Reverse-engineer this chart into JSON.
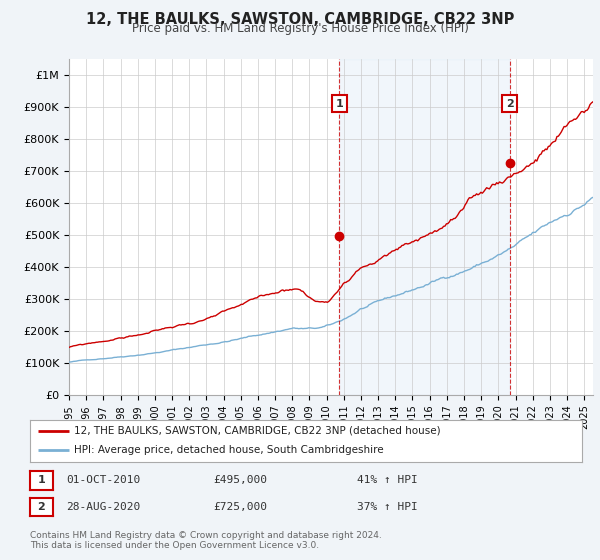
{
  "title": "12, THE BAULKS, SAWSTON, CAMBRIDGE, CB22 3NP",
  "subtitle": "Price paid vs. HM Land Registry's House Price Index (HPI)",
  "background_color": "#f0f4f8",
  "plot_bg_color": "#ffffff",
  "red_line_color": "#cc0000",
  "blue_line_color": "#7ab0d4",
  "shaded_color": "#c8dff0",
  "marker1_date_x": 2010.75,
  "marker1_price": 495000,
  "marker1_label": "1",
  "marker2_date_x": 2020.65,
  "marker2_price": 725000,
  "marker2_label": "2",
  "ylim": [
    0,
    1050000
  ],
  "xlim_start": 1995,
  "xlim_end": 2025.5,
  "ytick_vals": [
    0,
    100000,
    200000,
    300000,
    400000,
    500000,
    600000,
    700000,
    800000,
    900000,
    1000000
  ],
  "ytick_labels": [
    "£0",
    "£100K",
    "£200K",
    "£300K",
    "£400K",
    "£500K",
    "£600K",
    "£700K",
    "£800K",
    "£900K",
    "£1M"
  ],
  "legend_line1": "12, THE BAULKS, SAWSTON, CAMBRIDGE, CB22 3NP (detached house)",
  "legend_line2": "HPI: Average price, detached house, South Cambridgeshire",
  "annotation1_date": "01-OCT-2010",
  "annotation1_price": "£495,000",
  "annotation1_hpi": "41% ↑ HPI",
  "annotation2_date": "28-AUG-2020",
  "annotation2_price": "£725,000",
  "annotation2_hpi": "37% ↑ HPI",
  "footer": "Contains HM Land Registry data © Crown copyright and database right 2024.\nThis data is licensed under the Open Government Licence v3.0."
}
